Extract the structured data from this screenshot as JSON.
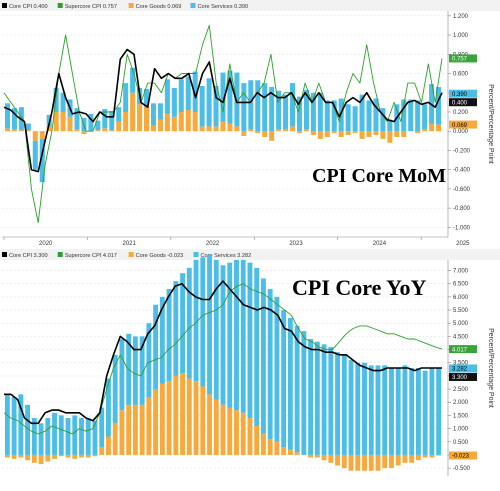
{
  "colors": {
    "core_cpi": "#000000",
    "supercore_cpi": "#2e9e2e",
    "core_goods": "#f7a93b",
    "core_services": "#4cbde6",
    "current_badge_green": "#3aa33a",
    "current_badge_black": "#111111",
    "current_badge_orange": "#f7a93b",
    "current_badge_blue": "#4cbde6"
  },
  "chart_data": [
    {
      "type": "bar",
      "title": "CPI Core MoM",
      "ylabel": "Percent/Percentage Point",
      "ylim": [
        -1.1,
        1.25
      ],
      "yticks": [
        -1.0,
        -0.8,
        -0.6,
        -0.4,
        -0.2,
        0.0,
        0.2,
        0.4,
        0.6,
        0.8,
        1.0,
        1.2
      ],
      "ytick_labels": [
        "-1.000",
        "-0.800",
        "-0.600",
        "-0.400",
        "-0.200",
        "0.000",
        "0.200",
        "0.400",
        "0.600",
        "0.800",
        "1.000",
        "1.200"
      ],
      "xtick_labels": [
        "2020",
        "2021",
        "2022",
        "2023",
        "2024",
        "2025"
      ],
      "legend": [
        {
          "key": "core_cpi",
          "label": "Core CPI 0.400"
        },
        {
          "key": "supercore_cpi",
          "label": "Supercore CPI 0.757"
        },
        {
          "key": "core_goods",
          "label": "Core Goods 0.069"
        },
        {
          "key": "core_services",
          "label": "Core Services 0.390"
        }
      ],
      "current_values": [
        {
          "key": "supercore_cpi",
          "label": "0.757",
          "value": 0.757
        },
        {
          "key": "core_services",
          "label": "0.390",
          "value": 0.39
        },
        {
          "key": "core_cpi",
          "label": "0.400",
          "value": 0.4
        },
        {
          "key": "core_goods",
          "label": "0.069",
          "value": 0.069
        }
      ],
      "series": [
        {
          "key": "core_services",
          "type": "bar",
          "values": [
            0.26,
            0.22,
            0.24,
            0.07,
            -0.3,
            -0.45,
            0.12,
            0.25,
            0.2,
            0.18,
            0.22,
            0.14,
            0.18,
            0.1,
            0.2,
            0.2,
            0.15,
            0.3,
            0.26,
            0.17,
            0.18,
            0.23,
            0.17,
            0.36,
            0.3,
            0.34,
            0.35,
            0.42,
            0.42,
            0.5,
            0.42,
            0.51,
            0.55,
            0.56,
            0.5,
            0.51,
            0.53,
            0.5,
            0.46,
            0.4,
            0.36,
            0.45,
            0.36,
            0.41,
            0.4,
            0.4,
            0.32,
            0.32,
            0.34,
            0.28,
            0.26,
            0.38,
            0.32,
            0.34,
            0.24,
            0.12,
            0.28,
            0.33,
            0.33,
            0.32,
            0.26,
            0.41,
            0.39
          ]
        },
        {
          "key": "core_goods",
          "type": "bar",
          "values": [
            0.03,
            0.02,
            0.01,
            0.01,
            -0.1,
            -0.08,
            0.05,
            0.2,
            0.2,
            0.15,
            0.02,
            -0.03,
            0.0,
            0.01,
            0.03,
            0.01,
            0.1,
            0.2,
            0.4,
            0.28,
            0.26,
            0.06,
            0.12,
            0.18,
            0.15,
            0.2,
            0.22,
            0.2,
            0.05,
            0.05,
            0.05,
            0.1,
            0.08,
            0.05,
            -0.05,
            0.02,
            -0.02,
            -0.06,
            -0.1,
            0.02,
            0.02,
            0.05,
            -0.02,
            0.02,
            -0.04,
            -0.08,
            -0.06,
            -0.02,
            -0.06,
            -0.04,
            -0.02,
            -0.08,
            -0.06,
            -0.04,
            -0.08,
            -0.12,
            -0.06,
            -0.06,
            0.0,
            -0.02,
            0.02,
            0.08,
            0.069
          ]
        },
        {
          "key": "core_cpi",
          "type": "line",
          "values": [
            0.25,
            0.22,
            0.15,
            0.1,
            -0.4,
            -0.42,
            -0.1,
            0.2,
            0.6,
            0.35,
            0.18,
            0.2,
            0.18,
            0.1,
            0.2,
            0.15,
            0.15,
            0.75,
            0.85,
            0.8,
            0.3,
            0.25,
            0.65,
            0.55,
            0.6,
            0.55,
            0.55,
            0.6,
            0.35,
            0.6,
            0.72,
            0.35,
            0.3,
            0.55,
            0.3,
            0.3,
            0.3,
            0.4,
            0.35,
            0.4,
            0.35,
            0.35,
            0.4,
            0.28,
            0.4,
            0.3,
            0.4,
            0.3,
            0.3,
            0.15,
            0.3,
            0.35,
            0.3,
            0.4,
            0.28,
            0.2,
            0.12,
            0.1,
            0.2,
            0.3,
            0.32,
            0.28,
            0.3,
            0.25,
            0.4
          ]
        },
        {
          "key": "supercore_cpi",
          "type": "line",
          "values": [
            0.4,
            0.3,
            0.2,
            0.1,
            -0.6,
            -0.95,
            -0.35,
            0.0,
            0.6,
            1.0,
            0.6,
            0.2,
            0.0,
            0.0,
            0.2,
            0.2,
            0.2,
            0.3,
            0.8,
            0.6,
            0.3,
            0.5,
            0.5,
            0.4,
            0.6,
            0.55,
            0.6,
            0.6,
            0.6,
            0.9,
            1.1,
            0.5,
            0.2,
            0.7,
            0.3,
            0.4,
            0.3,
            0.4,
            0.5,
            0.8,
            0.3,
            0.4,
            0.4,
            0.2,
            0.5,
            0.3,
            0.5,
            0.3,
            0.3,
            0.1,
            0.4,
            0.6,
            0.5,
            0.9,
            0.5,
            0.2,
            0.1,
            0.3,
            0.1,
            0.5,
            0.5,
            0.3,
            0.7,
            0.3,
            0.757
          ]
        }
      ]
    },
    {
      "type": "bar",
      "title": "CPI Core YoY",
      "ylabel": "Percent/Percentage Point",
      "ylim": [
        -0.8,
        7.4
      ],
      "yticks": [
        -0.5,
        0.0,
        0.5,
        1.0,
        1.5,
        2.0,
        2.5,
        3.0,
        3.5,
        4.0,
        4.5,
        5.0,
        5.5,
        6.0,
        6.5,
        7.0
      ],
      "ytick_labels": [
        "-0.500",
        "0.000",
        "0.500",
        "1.000",
        "1.500",
        "2.000",
        "2.500",
        "3.000",
        "3.500",
        "4.000",
        "4.500",
        "5.000",
        "5.500",
        "6.000",
        "6.500",
        "7.000"
      ],
      "legend": [
        {
          "key": "core_cpi",
          "label": "Core CPI 3.300"
        },
        {
          "key": "supercore_cpi",
          "label": "Supercore CPI 4.017"
        },
        {
          "key": "core_goods",
          "label": "Core Goods -0.023"
        },
        {
          "key": "core_services",
          "label": "Core Services 3.282"
        }
      ],
      "current_values": [
        {
          "key": "supercore_cpi",
          "label": "4.017",
          "value": 4.017
        },
        {
          "key": "core_services",
          "label": "3.282",
          "value": 3.282
        },
        {
          "key": "core_cpi",
          "label": "3.300",
          "value": 3.3
        },
        {
          "key": "core_goods",
          "label": "-0.023",
          "value": -0.023
        }
      ],
      "series": [
        {
          "key": "core_services",
          "type": "bar",
          "values": [
            2.3,
            2.2,
            2.3,
            1.9,
            1.4,
            1.2,
            1.4,
            1.6,
            1.5,
            1.4,
            1.5,
            1.4,
            1.4,
            1.3,
            1.5,
            2.2,
            2.6,
            2.7,
            2.7,
            2.6,
            2.6,
            2.8,
            3.2,
            3.3,
            3.5,
            3.6,
            3.8,
            4.2,
            4.6,
            4.9,
            5.3,
            5.3,
            5.3,
            5.5,
            5.7,
            5.8,
            5.9,
            6.0,
            5.9,
            5.7,
            5.5,
            5.2,
            5.0,
            4.8,
            4.7,
            4.4,
            4.3,
            4.2,
            4.1,
            3.9,
            3.8,
            3.6,
            3.5,
            3.5,
            3.4,
            3.4,
            3.4,
            3.3,
            3.3,
            3.4,
            3.3,
            3.3,
            3.2,
            3.3,
            3.282
          ]
        },
        {
          "key": "core_goods",
          "type": "bar",
          "values": [
            -0.1,
            -0.15,
            -0.1,
            -0.2,
            -0.3,
            -0.35,
            -0.25,
            -0.15,
            -0.05,
            -0.1,
            -0.15,
            -0.1,
            -0.1,
            -0.05,
            0.3,
            0.7,
            1.2,
            1.7,
            1.9,
            1.9,
            1.9,
            2.2,
            2.5,
            2.7,
            2.8,
            3.0,
            3.1,
            2.9,
            2.8,
            2.6,
            2.3,
            2.1,
            1.9,
            1.8,
            1.7,
            1.6,
            1.4,
            1.1,
            0.8,
            0.6,
            0.5,
            0.3,
            0.2,
            0.1,
            0.0,
            -0.1,
            -0.1,
            -0.2,
            -0.3,
            -0.4,
            -0.5,
            -0.6,
            -0.6,
            -0.6,
            -0.6,
            -0.6,
            -0.5,
            -0.5,
            -0.4,
            -0.3,
            -0.3,
            -0.2,
            -0.1,
            -0.1,
            -0.023
          ]
        },
        {
          "key": "core_cpi",
          "type": "line",
          "values": [
            2.3,
            2.3,
            2.1,
            1.4,
            1.2,
            1.2,
            1.6,
            1.7,
            1.7,
            1.6,
            1.6,
            1.6,
            1.4,
            1.3,
            1.6,
            3.0,
            3.8,
            4.5,
            4.3,
            4.0,
            4.0,
            4.6,
            4.9,
            5.5,
            6.0,
            6.4,
            6.5,
            6.2,
            6.0,
            5.9,
            5.9,
            6.3,
            6.6,
            6.3,
            6.0,
            5.7,
            5.6,
            5.5,
            5.6,
            5.5,
            5.3,
            4.8,
            4.7,
            4.3,
            4.1,
            4.0,
            4.0,
            3.9,
            3.9,
            3.8,
            3.8,
            3.6,
            3.4,
            3.3,
            3.2,
            3.2,
            3.3,
            3.3,
            3.3,
            3.3,
            3.2,
            3.3,
            3.3,
            3.3,
            3.3
          ]
        },
        {
          "key": "supercore_cpi",
          "type": "line",
          "values": [
            1.6,
            1.4,
            1.3,
            1.1,
            0.9,
            0.8,
            0.9,
            1.1,
            1.0,
            0.9,
            0.8,
            1.0,
            0.9,
            1.0,
            1.6,
            2.5,
            3.3,
            3.8,
            3.3,
            3.1,
            3.0,
            3.5,
            3.6,
            3.7,
            4.0,
            4.2,
            4.5,
            4.8,
            5.0,
            5.3,
            5.4,
            5.5,
            5.7,
            6.2,
            6.4,
            6.5,
            6.3,
            6.2,
            6.1,
            5.9,
            5.7,
            5.5,
            5.3,
            4.8,
            4.4,
            4.3,
            4.1,
            4.0,
            4.0,
            4.3,
            4.6,
            4.8,
            4.9,
            4.9,
            4.8,
            4.7,
            4.6,
            4.6,
            4.5,
            4.4,
            4.4,
            4.3,
            4.2,
            4.1,
            4.017
          ]
        }
      ]
    }
  ]
}
